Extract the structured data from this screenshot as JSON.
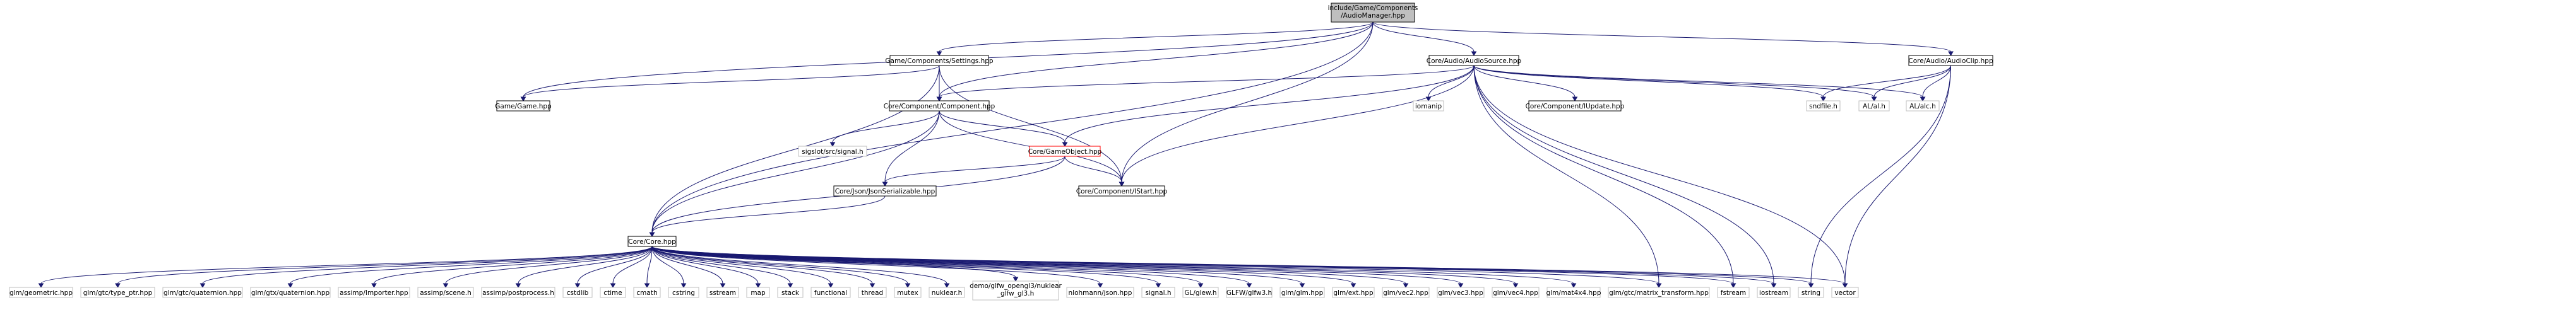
{
  "colors": {
    "edge": "#191970",
    "focus_fill": "#bfbfbf",
    "focus_stroke": "#000000",
    "documented_stroke": "#000000",
    "missing_stroke": "#bfbfbf",
    "highlight_stroke": "#ff0000",
    "node_fill": "#ffffff"
  },
  "nodes": [
    {
      "id": "audio-manager",
      "label": [
        "include/Game/Components",
        "/AudioManager.hpp"
      ],
      "kind": "focus"
    },
    {
      "id": "settings",
      "label": [
        "Game/Components/Settings.hpp"
      ],
      "kind": "documented"
    },
    {
      "id": "audio-source",
      "label": [
        "Core/Audio/AudioSource.hpp"
      ],
      "kind": "documented"
    },
    {
      "id": "audio-clip",
      "label": [
        "Core/Audio/AudioClip.hpp"
      ],
      "kind": "documented"
    },
    {
      "id": "game",
      "label": [
        "Game/Game.hpp"
      ],
      "kind": "documented"
    },
    {
      "id": "component",
      "label": [
        "Core/Component/Component.hpp"
      ],
      "kind": "documented"
    },
    {
      "id": "iomanip",
      "label": [
        "iomanip"
      ],
      "kind": "missing"
    },
    {
      "id": "iupdate",
      "label": [
        "Core/Component/IUpdate.hpp"
      ],
      "kind": "documented"
    },
    {
      "id": "sndfile",
      "label": [
        "sndfile.h"
      ],
      "kind": "missing"
    },
    {
      "id": "al-al",
      "label": [
        "AL/al.h"
      ],
      "kind": "missing"
    },
    {
      "id": "al-alc",
      "label": [
        "AL/alc.h"
      ],
      "kind": "missing"
    },
    {
      "id": "sigslot",
      "label": [
        "sigslot/src/signal.h"
      ],
      "kind": "missing"
    },
    {
      "id": "game-object",
      "label": [
        "Core/GameObject.hpp"
      ],
      "kind": "highlight"
    },
    {
      "id": "json-serializable",
      "label": [
        "Core/Json/JsonSerializable.hpp"
      ],
      "kind": "documented"
    },
    {
      "id": "istart",
      "label": [
        "Core/Component/IStart.hpp"
      ],
      "kind": "documented"
    },
    {
      "id": "core",
      "label": [
        "Core/Core.hpp"
      ],
      "kind": "documented"
    },
    {
      "id": "glm-geometric",
      "label": [
        "glm/geometric.hpp"
      ],
      "kind": "missing"
    },
    {
      "id": "glm-type-ptr",
      "label": [
        "glm/gtc/type_ptr.hpp"
      ],
      "kind": "missing"
    },
    {
      "id": "glm-gtc-quaternion",
      "label": [
        "glm/gtc/quaternion.hpp"
      ],
      "kind": "missing"
    },
    {
      "id": "glm-gtx-quaternion",
      "label": [
        "glm/gtx/quaternion.hpp"
      ],
      "kind": "missing"
    },
    {
      "id": "assimp-importer",
      "label": [
        "assimp/Importer.hpp"
      ],
      "kind": "missing"
    },
    {
      "id": "assimp-scene",
      "label": [
        "assimp/scene.h"
      ],
      "kind": "missing"
    },
    {
      "id": "assimp-postprocess",
      "label": [
        "assimp/postprocess.h"
      ],
      "kind": "missing"
    },
    {
      "id": "cstdlib",
      "label": [
        "cstdlib"
      ],
      "kind": "missing"
    },
    {
      "id": "ctime",
      "label": [
        "ctime"
      ],
      "kind": "missing"
    },
    {
      "id": "cmath",
      "label": [
        "cmath"
      ],
      "kind": "missing"
    },
    {
      "id": "cstring",
      "label": [
        "cstring"
      ],
      "kind": "missing"
    },
    {
      "id": "sstream",
      "label": [
        "sstream"
      ],
      "kind": "missing"
    },
    {
      "id": "map",
      "label": [
        "map"
      ],
      "kind": "missing"
    },
    {
      "id": "stack",
      "label": [
        "stack"
      ],
      "kind": "missing"
    },
    {
      "id": "functional",
      "label": [
        "functional"
      ],
      "kind": "missing"
    },
    {
      "id": "thread",
      "label": [
        "thread"
      ],
      "kind": "missing"
    },
    {
      "id": "mutex",
      "label": [
        "mutex"
      ],
      "kind": "missing"
    },
    {
      "id": "nuklear-h",
      "label": [
        "nuklear.h"
      ],
      "kind": "missing"
    },
    {
      "id": "nuklear-glfw",
      "label": [
        "demo/glfw_opengl3/nuklear",
        "_glfw_gl3.h"
      ],
      "kind": "missing"
    },
    {
      "id": "nlohmann-json",
      "label": [
        "nlohmann/json.hpp"
      ],
      "kind": "missing"
    },
    {
      "id": "signal-h",
      "label": [
        "signal.h"
      ],
      "kind": "missing"
    },
    {
      "id": "gl-glew",
      "label": [
        "GL/glew.h"
      ],
      "kind": "missing"
    },
    {
      "id": "glfw3",
      "label": [
        "GLFW/glfw3.h"
      ],
      "kind": "missing"
    },
    {
      "id": "glm-glm",
      "label": [
        "glm/glm.hpp"
      ],
      "kind": "missing"
    },
    {
      "id": "glm-ext",
      "label": [
        "glm/ext.hpp"
      ],
      "kind": "missing"
    },
    {
      "id": "glm-vec2",
      "label": [
        "glm/vec2.hpp"
      ],
      "kind": "missing"
    },
    {
      "id": "glm-vec3",
      "label": [
        "glm/vec3.hpp"
      ],
      "kind": "missing"
    },
    {
      "id": "glm-vec4",
      "label": [
        "glm/vec4.hpp"
      ],
      "kind": "missing"
    },
    {
      "id": "glm-mat4x4",
      "label": [
        "glm/mat4x4.hpp"
      ],
      "kind": "missing"
    },
    {
      "id": "glm-matrix-transform",
      "label": [
        "glm/gtc/matrix_transform.hpp"
      ],
      "kind": "missing"
    },
    {
      "id": "fstream",
      "label": [
        "fstream"
      ],
      "kind": "missing"
    },
    {
      "id": "iostream",
      "label": [
        "iostream"
      ],
      "kind": "missing"
    },
    {
      "id": "string",
      "label": [
        "string"
      ],
      "kind": "missing"
    },
    {
      "id": "vector",
      "label": [
        "vector"
      ],
      "kind": "missing"
    }
  ],
  "edges": [
    [
      "audio-manager",
      "settings"
    ],
    [
      "audio-manager",
      "audio-source"
    ],
    [
      "audio-manager",
      "audio-clip"
    ],
    [
      "audio-manager",
      "game"
    ],
    [
      "audio-manager",
      "component"
    ],
    [
      "audio-manager",
      "istart"
    ],
    [
      "audio-manager",
      "core"
    ],
    [
      "settings",
      "game"
    ],
    [
      "settings",
      "component"
    ],
    [
      "settings",
      "istart"
    ],
    [
      "settings",
      "core"
    ],
    [
      "audio-source",
      "component"
    ],
    [
      "audio-source",
      "iomanip"
    ],
    [
      "audio-source",
      "iupdate"
    ],
    [
      "audio-source",
      "sndfile"
    ],
    [
      "audio-source",
      "al-al"
    ],
    [
      "audio-source",
      "al-alc"
    ],
    [
      "audio-source",
      "game-object"
    ],
    [
      "audio-source",
      "istart"
    ],
    [
      "audio-source",
      "iostream"
    ],
    [
      "audio-source",
      "vector"
    ],
    [
      "audio-source",
      "fstream"
    ],
    [
      "audio-source",
      "glm-matrix-transform"
    ],
    [
      "audio-clip",
      "sndfile"
    ],
    [
      "audio-clip",
      "al-al"
    ],
    [
      "audio-clip",
      "al-alc"
    ],
    [
      "audio-clip",
      "string"
    ],
    [
      "audio-clip",
      "vector"
    ],
    [
      "component",
      "sigslot"
    ],
    [
      "component",
      "game-object"
    ],
    [
      "component",
      "json-serializable"
    ],
    [
      "component",
      "istart"
    ],
    [
      "component",
      "core"
    ],
    [
      "game-object",
      "json-serializable"
    ],
    [
      "game-object",
      "istart"
    ],
    [
      "game-object",
      "core"
    ],
    [
      "json-serializable",
      "core"
    ],
    [
      "core",
      "glm-geometric"
    ],
    [
      "core",
      "glm-type-ptr"
    ],
    [
      "core",
      "glm-gtc-quaternion"
    ],
    [
      "core",
      "glm-gtx-quaternion"
    ],
    [
      "core",
      "assimp-importer"
    ],
    [
      "core",
      "assimp-scene"
    ],
    [
      "core",
      "assimp-postprocess"
    ],
    [
      "core",
      "cstdlib"
    ],
    [
      "core",
      "ctime"
    ],
    [
      "core",
      "cmath"
    ],
    [
      "core",
      "cstring"
    ],
    [
      "core",
      "sstream"
    ],
    [
      "core",
      "map"
    ],
    [
      "core",
      "stack"
    ],
    [
      "core",
      "functional"
    ],
    [
      "core",
      "thread"
    ],
    [
      "core",
      "mutex"
    ],
    [
      "core",
      "nuklear-h"
    ],
    [
      "core",
      "nuklear-glfw"
    ],
    [
      "core",
      "nlohmann-json"
    ],
    [
      "core",
      "signal-h"
    ],
    [
      "core",
      "gl-glew"
    ],
    [
      "core",
      "glfw3"
    ],
    [
      "core",
      "glm-glm"
    ],
    [
      "core",
      "glm-ext"
    ],
    [
      "core",
      "glm-vec2"
    ],
    [
      "core",
      "glm-vec3"
    ],
    [
      "core",
      "glm-vec4"
    ],
    [
      "core",
      "glm-mat4x4"
    ],
    [
      "core",
      "glm-matrix-transform"
    ],
    [
      "core",
      "fstream"
    ],
    [
      "core",
      "iostream"
    ],
    [
      "core",
      "string"
    ],
    [
      "core",
      "vector"
    ]
  ]
}
